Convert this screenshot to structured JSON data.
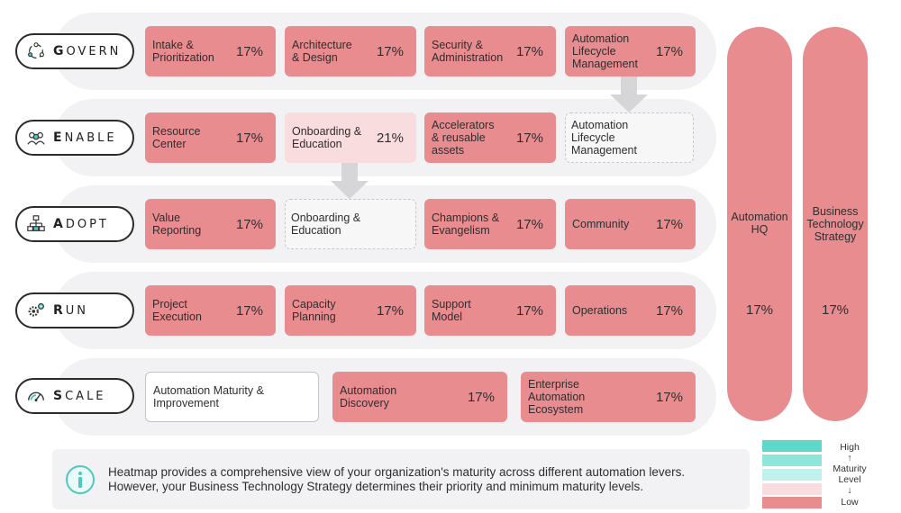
{
  "rows": [
    {
      "first": "G",
      "rest": "OVERN",
      "icon": "cycle-icon"
    },
    {
      "first": "E",
      "rest": "NABLE",
      "icon": "people-icon"
    },
    {
      "first": "A",
      "rest": "DOPT",
      "icon": "hierarchy-icon"
    },
    {
      "first": "R",
      "rest": "UN",
      "icon": "gears-icon"
    },
    {
      "first": "S",
      "rest": "CALE",
      "icon": "gauge-icon"
    }
  ],
  "cells": {
    "govern": [
      {
        "name": "Intake &\nPrioritization",
        "pct": "17%"
      },
      {
        "name": "Architecture\n& Design",
        "pct": "17%"
      },
      {
        "name": "Security &\nAdministration",
        "pct": "17%"
      },
      {
        "name": "Automation\nLifecycle\nManagement",
        "pct": "17%"
      }
    ],
    "enable": [
      {
        "name": "Resource\nCenter",
        "pct": "17%"
      },
      {
        "name": "Onboarding &\nEducation",
        "pct": "21%"
      },
      {
        "name": "Accelerators\n& reusable\nassets",
        "pct": "17%"
      },
      {
        "name": "Automation\nLifecycle\nManagement",
        "pct": ""
      }
    ],
    "adopt": [
      {
        "name": "Value\nReporting",
        "pct": "17%"
      },
      {
        "name": "Onboarding &\nEducation",
        "pct": ""
      },
      {
        "name": "Champions &\nEvangelism",
        "pct": "17%"
      },
      {
        "name": "Community",
        "pct": "17%"
      }
    ],
    "run": [
      {
        "name": "Project\nExecution",
        "pct": "17%"
      },
      {
        "name": "Capacity\nPlanning",
        "pct": "17%"
      },
      {
        "name": "Support\nModel",
        "pct": "17%"
      },
      {
        "name": "Operations",
        "pct": "17%"
      }
    ],
    "scale": [
      {
        "name": "Automation Maturity &\nImprovement",
        "pct": ""
      },
      {
        "name": "Automation\nDiscovery",
        "pct": "17%"
      },
      {
        "name": "Enterprise\nAutomation\nEcosystem",
        "pct": "17%"
      }
    ]
  },
  "pillars": [
    {
      "name": "Automation\nHQ",
      "pct": "17%"
    },
    {
      "name": "Business\nTechnology\nStrategy",
      "pct": "17%"
    }
  ],
  "info": {
    "text": "Heatmap provides a comprehensive view of your organization's maturity across different automation levers. However, your Business Technology Strategy determines their priority and minimum maturity levels."
  },
  "legend": {
    "high": "High",
    "up": "↑",
    "title": "Maturity\nLevel",
    "down": "↓",
    "low": "Low",
    "colors": [
      "#5ed9c9",
      "#8ce6da",
      "#bff2ec",
      "#f9dcdd",
      "#e88c90"
    ]
  }
}
